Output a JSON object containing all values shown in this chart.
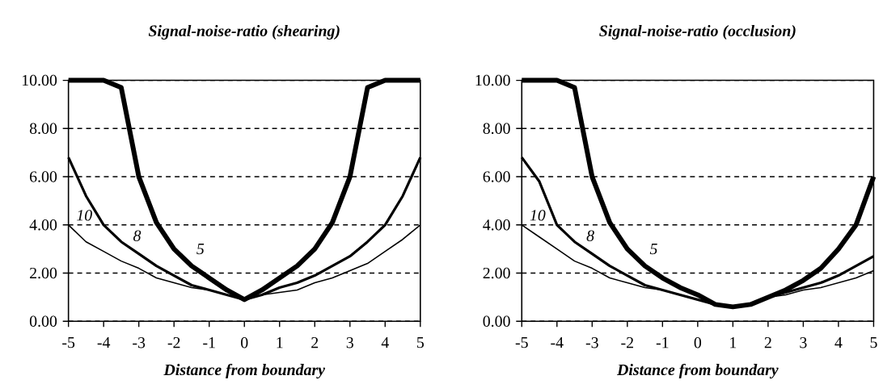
{
  "chart_data": [
    {
      "type": "line",
      "title": "Signal-noise-ratio (shearing)",
      "xlabel": "Distance from boundary",
      "x": [
        -5,
        -4.5,
        -4,
        -3.5,
        -3,
        -2.5,
        -2,
        -1.5,
        -1,
        -0.5,
        0,
        0.5,
        1,
        1.5,
        2,
        2.5,
        3,
        3.5,
        4,
        4.5,
        5
      ],
      "series": [
        {
          "name": "5",
          "color": "#000000",
          "values": [
            10,
            10,
            10,
            9.7,
            6,
            4.1,
            3,
            2.3,
            1.8,
            1.3,
            0.9,
            1.3,
            1.8,
            2.3,
            3,
            4.1,
            6,
            9.7,
            10,
            10,
            10
          ]
        },
        {
          "name": "8",
          "color": "#000000",
          "values": [
            6.8,
            5.2,
            4,
            3.3,
            2.8,
            2.3,
            1.9,
            1.5,
            1.3,
            1.1,
            0.9,
            1.1,
            1.4,
            1.6,
            1.9,
            2.3,
            2.7,
            3.3,
            4,
            5.2,
            6.8
          ]
        },
        {
          "name": "10",
          "color": "#000000",
          "values": [
            4,
            3.3,
            2.9,
            2.5,
            2.2,
            1.8,
            1.6,
            1.4,
            1.3,
            1.1,
            0.9,
            1.1,
            1.2,
            1.3,
            1.6,
            1.8,
            2.1,
            2.4,
            2.9,
            3.4,
            4
          ]
        }
      ],
      "xlim": [
        -5,
        5
      ],
      "xticks": [
        -5,
        -4,
        -3,
        -2,
        -1,
        0,
        1,
        2,
        3,
        4,
        5
      ],
      "ylim": [
        0,
        10
      ],
      "yticks": [
        {
          "value": 0,
          "label": "0.00"
        },
        {
          "value": 2,
          "label": "2.00"
        },
        {
          "value": 4,
          "label": "4.00"
        },
        {
          "value": 6,
          "label": "6.00"
        },
        {
          "value": 8,
          "label": "8.00"
        },
        {
          "value": 10,
          "label": "10.00"
        }
      ],
      "grid": "y",
      "legend": "left",
      "marker": "none",
      "line_style": "solid"
    },
    {
      "type": "line",
      "title": "Signal-noise-ratio (occlusion)",
      "xlabel": "Distance from boundary",
      "x": [
        -5,
        -4.5,
        -4,
        -3.5,
        -3,
        -2.5,
        -2,
        -1.5,
        -1,
        -0.5,
        0,
        0.5,
        1,
        1.5,
        2,
        2.5,
        3,
        3.5,
        4,
        4.5,
        5
      ],
      "series": [
        {
          "name": "5",
          "color": "#000000",
          "values": [
            10,
            10,
            10,
            9.7,
            6,
            4.1,
            3,
            2.3,
            1.8,
            1.4,
            1.1,
            0.7,
            0.6,
            0.7,
            1,
            1.3,
            1.7,
            2.2,
            3,
            4,
            6
          ]
        },
        {
          "name": "8",
          "color": "#000000",
          "values": [
            6.8,
            5.8,
            4,
            3.3,
            2.8,
            2.3,
            1.9,
            1.5,
            1.3,
            1.1,
            0.9,
            0.7,
            0.6,
            0.7,
            1,
            1.2,
            1.4,
            1.6,
            1.9,
            2.3,
            2.7
          ]
        },
        {
          "name": "10",
          "color": "#000000",
          "values": [
            4,
            3.5,
            3,
            2.5,
            2.2,
            1.8,
            1.6,
            1.4,
            1.3,
            1.1,
            0.9,
            0.7,
            0.6,
            0.7,
            1,
            1.1,
            1.3,
            1.4,
            1.6,
            1.8,
            2.1
          ]
        }
      ],
      "xlim": [
        -5,
        5
      ],
      "xticks": [
        -5,
        -4,
        -3,
        -2,
        -1,
        0,
        1,
        2,
        3,
        4,
        5
      ],
      "ylim": [
        0,
        10
      ],
      "yticks": [
        {
          "value": 0,
          "label": "0.00"
        },
        {
          "value": 2,
          "label": "2.00"
        },
        {
          "value": 4,
          "label": "4.00"
        },
        {
          "value": 6,
          "label": "6.00"
        },
        {
          "value": 8,
          "label": "8.00"
        },
        {
          "value": 10,
          "label": "10.00"
        }
      ],
      "grid": "y",
      "legend": "left",
      "marker": "none",
      "line_style": "solid"
    }
  ]
}
